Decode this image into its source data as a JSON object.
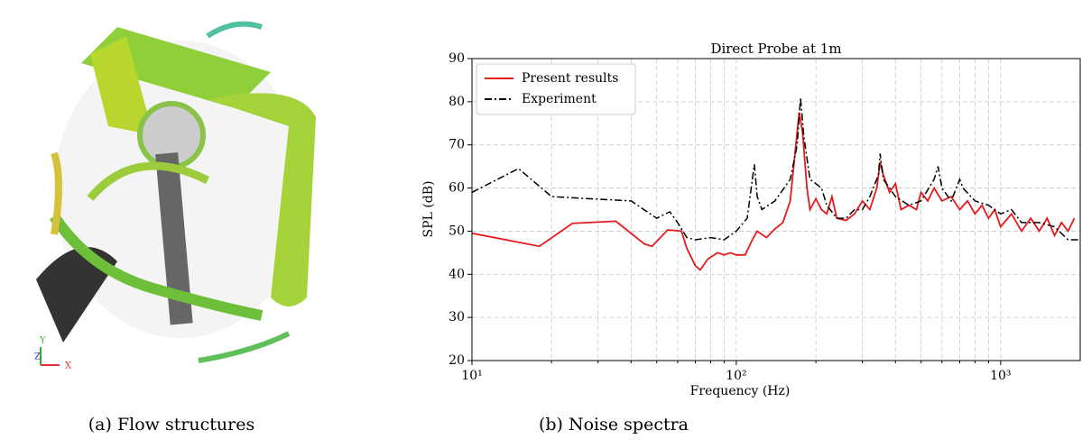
{
  "chart_data": {
    "type": "line",
    "title": "Direct Probe at 1m",
    "x_label": "Frequency (Hz)",
    "y_label": "SPL (dB)",
    "xscale": "log",
    "xlim": [
      10,
      2000
    ],
    "ylim": [
      20,
      90
    ],
    "xticks": [
      {
        "value": 10,
        "label": "10¹"
      },
      {
        "value": 100,
        "label": "10²"
      },
      {
        "value": 1000,
        "label": "10³"
      }
    ],
    "xminorticks": [
      20,
      30,
      40,
      50,
      60,
      70,
      80,
      90,
      200,
      300,
      400,
      500,
      600,
      700,
      800,
      900
    ],
    "yticks": [
      20,
      30,
      40,
      50,
      60,
      70,
      80,
      90
    ],
    "grid": true,
    "legend": "upper left",
    "series": [
      {
        "name": "Present results",
        "color": "#e41a1c",
        "style": "solid",
        "x": [
          10,
          18,
          24,
          35,
          45,
          48,
          55,
          62,
          65,
          70,
          73,
          78,
          85,
          90,
          95,
          100,
          108,
          115,
          120,
          130,
          140,
          150,
          160,
          168,
          173,
          178,
          185,
          190,
          200,
          210,
          220,
          230,
          240,
          260,
          280,
          300,
          320,
          340,
          350,
          360,
          380,
          400,
          420,
          450,
          480,
          500,
          530,
          560,
          600,
          650,
          700,
          750,
          800,
          850,
          900,
          950,
          1000,
          1100,
          1200,
          1300,
          1400,
          1500,
          1600,
          1700,
          1800,
          1900
        ],
        "values": [
          49.5,
          46.5,
          51.8,
          52.3,
          47,
          46.5,
          50.3,
          50,
          46,
          42,
          41,
          43.5,
          45,
          44.5,
          45,
          44.5,
          44.5,
          48,
          50,
          48.5,
          50.5,
          52,
          57,
          70,
          77.5,
          73,
          60,
          55,
          57.5,
          55,
          54,
          58,
          53,
          52.5,
          54,
          57,
          55,
          60,
          66,
          63,
          59,
          61,
          55,
          56,
          55,
          59,
          57,
          60,
          57,
          58,
          55,
          57,
          54,
          56,
          53,
          55,
          51,
          54,
          50,
          53,
          50,
          53,
          49,
          52,
          50,
          53
        ]
      },
      {
        "name": "Experiment",
        "color": "#000000",
        "style": "dashdot",
        "x": [
          10,
          15,
          20,
          28,
          40,
          50,
          56,
          60,
          65,
          70,
          80,
          90,
          100,
          110,
          115,
          117,
          120,
          125,
          140,
          160,
          170,
          175,
          180,
          190,
          200,
          210,
          220,
          240,
          260,
          280,
          300,
          320,
          345,
          350,
          360,
          380,
          400,
          450,
          500,
          560,
          580,
          600,
          650,
          700,
          720,
          800,
          900,
          1000,
          1100,
          1200,
          1400,
          1600,
          1800,
          2000
        ],
        "values": [
          59,
          64.5,
          58,
          57.5,
          57,
          53,
          54.5,
          52,
          48.5,
          48,
          48.5,
          48,
          50,
          53,
          62,
          65.5,
          58,
          55,
          57,
          62,
          70,
          81,
          72,
          62,
          61,
          60,
          56,
          53,
          53,
          55,
          55,
          58,
          63,
          68,
          62,
          60,
          58,
          56,
          57,
          62,
          65,
          60,
          57,
          62,
          60,
          57,
          56,
          54,
          55,
          52,
          52,
          51,
          48,
          48
        ]
      }
    ]
  },
  "flow_image": {
    "axis_labels": [
      "Y",
      "Z",
      "X"
    ]
  },
  "captions": [
    "(a) Flow structures",
    "(b) Noise spectra"
  ]
}
